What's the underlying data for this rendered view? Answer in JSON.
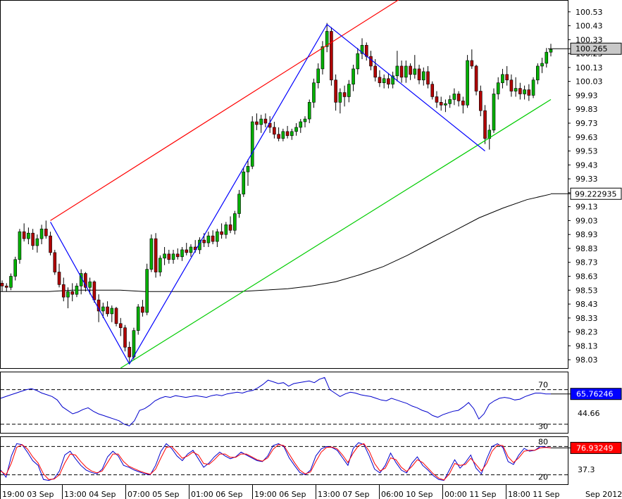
{
  "chart_data": [
    {
      "type": "candlestick",
      "panel": "price",
      "symbol_title": "",
      "ylim": [
        97.97,
        100.61
      ],
      "y_ticks": [
        "100.53",
        "100.43",
        "100.33",
        "100.23",
        "100.13",
        "100.03",
        "99.93",
        "99.83",
        "99.73",
        "99.63",
        "99.53",
        "99.43",
        "99.33",
        "99.23",
        "99.13",
        "99.03",
        "98.93",
        "98.83",
        "98.73",
        "98.63",
        "98.53",
        "98.43",
        "98.33",
        "98.23",
        "98.13",
        "98.03"
      ],
      "last_price_label": "100.265",
      "last_price": 100.265,
      "moving_average_label": "99.222935",
      "moving_average_last": 99.222935,
      "ohlc": [
        [
          98.58,
          98.6,
          98.52,
          98.56
        ],
        [
          98.56,
          98.58,
          98.52,
          98.55
        ],
        [
          98.55,
          98.65,
          98.53,
          98.63
        ],
        [
          98.63,
          98.77,
          98.6,
          98.75
        ],
        [
          98.75,
          98.97,
          98.72,
          98.95
        ],
        [
          98.95,
          99.01,
          98.88,
          98.9
        ],
        [
          98.9,
          98.98,
          98.86,
          98.94
        ],
        [
          98.94,
          98.97,
          98.82,
          98.85
        ],
        [
          98.85,
          98.93,
          98.8,
          98.9
        ],
        [
          98.9,
          99.0,
          98.86,
          98.97
        ],
        [
          98.97,
          99.03,
          98.9,
          98.92
        ],
        [
          98.92,
          98.95,
          98.78,
          98.8
        ],
        [
          98.8,
          98.82,
          98.64,
          98.66
        ],
        [
          98.66,
          98.72,
          98.55,
          98.57
        ],
        [
          98.57,
          98.62,
          98.45,
          98.48
        ],
        [
          98.48,
          98.55,
          98.4,
          98.52
        ],
        [
          98.52,
          98.58,
          98.45,
          98.5
        ],
        [
          98.5,
          98.58,
          98.48,
          98.56
        ],
        [
          98.56,
          98.68,
          98.5,
          98.65
        ],
        [
          98.65,
          98.66,
          98.52,
          98.55
        ],
        [
          98.55,
          98.62,
          98.5,
          98.59
        ],
        [
          98.59,
          98.6,
          98.44,
          98.46
        ],
        [
          98.46,
          98.5,
          98.3,
          98.38
        ],
        [
          98.38,
          98.44,
          98.33,
          98.41
        ],
        [
          98.41,
          98.45,
          98.34,
          98.36
        ],
        [
          98.36,
          98.42,
          98.3,
          98.4
        ],
        [
          98.4,
          98.41,
          98.27,
          98.29
        ],
        [
          98.29,
          98.33,
          98.2,
          98.26
        ],
        [
          98.26,
          98.28,
          98.09,
          98.12
        ],
        [
          98.12,
          98.16,
          98.0,
          98.05
        ],
        [
          98.05,
          98.26,
          98.03,
          98.24
        ],
        [
          98.24,
          98.43,
          98.21,
          98.41
        ],
        [
          98.41,
          98.46,
          98.34,
          98.37
        ],
        [
          98.37,
          98.72,
          98.35,
          98.68
        ],
        [
          98.68,
          98.93,
          98.66,
          98.9
        ],
        [
          98.9,
          98.94,
          98.62,
          98.66
        ],
        [
          98.66,
          98.78,
          98.63,
          98.76
        ],
        [
          98.76,
          98.84,
          98.71,
          98.79
        ],
        [
          98.79,
          98.82,
          98.72,
          98.75
        ],
        [
          98.75,
          98.82,
          98.72,
          98.79
        ],
        [
          98.79,
          98.83,
          98.75,
          98.77
        ],
        [
          98.77,
          98.84,
          98.74,
          98.82
        ],
        [
          98.82,
          98.87,
          98.78,
          98.8
        ],
        [
          98.8,
          98.86,
          98.77,
          98.84
        ],
        [
          98.84,
          98.89,
          98.8,
          98.82
        ],
        [
          98.82,
          98.91,
          98.79,
          98.89
        ],
        [
          98.89,
          98.94,
          98.84,
          98.87
        ],
        [
          98.87,
          98.95,
          98.84,
          98.92
        ],
        [
          98.92,
          98.96,
          98.86,
          98.88
        ],
        [
          98.88,
          98.97,
          98.84,
          98.95
        ],
        [
          98.95,
          99.01,
          98.9,
          98.93
        ],
        [
          98.93,
          99.02,
          98.9,
          99.0
        ],
        [
          99.0,
          99.06,
          98.94,
          98.96
        ],
        [
          98.96,
          99.1,
          98.93,
          99.08
        ],
        [
          99.08,
          99.25,
          99.05,
          99.22
        ],
        [
          99.22,
          99.41,
          99.2,
          99.38
        ],
        [
          99.38,
          99.47,
          99.28,
          99.42
        ],
        [
          99.42,
          99.78,
          99.4,
          99.74
        ],
        [
          99.74,
          99.8,
          99.68,
          99.72
        ],
        [
          99.72,
          99.79,
          99.66,
          99.76
        ],
        [
          99.76,
          99.8,
          99.7,
          99.73
        ],
        [
          99.73,
          99.78,
          99.66,
          99.7
        ],
        [
          99.7,
          99.74,
          99.62,
          99.65
        ],
        [
          99.65,
          99.7,
          99.6,
          99.62
        ],
        [
          99.62,
          99.69,
          99.6,
          99.67
        ],
        [
          99.67,
          99.71,
          99.62,
          99.64
        ],
        [
          99.64,
          99.69,
          99.61,
          99.67
        ],
        [
          99.67,
          99.73,
          99.64,
          99.7
        ],
        [
          99.7,
          99.76,
          99.66,
          99.74
        ],
        [
          99.74,
          99.78,
          99.7,
          99.76
        ],
        [
          99.76,
          99.9,
          99.73,
          99.88
        ],
        [
          99.88,
          100.05,
          99.84,
          100.02
        ],
        [
          100.02,
          100.16,
          99.98,
          100.12
        ],
        [
          100.12,
          100.32,
          100.08,
          100.28
        ],
        [
          100.28,
          100.45,
          100.24,
          100.39
        ],
        [
          100.39,
          100.42,
          100.0,
          100.04
        ],
        [
          100.04,
          100.08,
          99.82,
          99.88
        ],
        [
          99.88,
          99.98,
          99.8,
          99.95
        ],
        [
          99.95,
          100.0,
          99.85,
          99.92
        ],
        [
          99.92,
          100.04,
          99.88,
          100.01
        ],
        [
          100.01,
          100.15,
          99.96,
          100.12
        ],
        [
          100.12,
          100.27,
          100.08,
          100.23
        ],
        [
          100.23,
          100.34,
          100.19,
          100.29
        ],
        [
          100.29,
          100.31,
          100.18,
          100.21
        ],
        [
          100.21,
          100.25,
          100.11,
          100.14
        ],
        [
          100.14,
          100.19,
          100.03,
          100.06
        ],
        [
          100.06,
          100.11,
          99.99,
          100.02
        ],
        [
          100.02,
          100.08,
          99.98,
          100.05
        ],
        [
          100.05,
          100.09,
          99.98,
          100.01
        ],
        [
          100.01,
          100.1,
          99.98,
          100.07
        ],
        [
          100.07,
          100.25,
          100.03,
          100.14
        ],
        [
          100.14,
          100.18,
          100.02,
          100.06
        ],
        [
          100.06,
          100.18,
          100.02,
          100.14
        ],
        [
          100.14,
          100.16,
          100.04,
          100.08
        ],
        [
          100.08,
          100.22,
          100.05,
          100.12
        ],
        [
          100.12,
          100.15,
          100.01,
          100.04
        ],
        [
          100.04,
          100.13,
          100.0,
          100.1
        ],
        [
          100.1,
          100.14,
          99.98,
          100.01
        ],
        [
          100.01,
          100.03,
          99.9,
          99.92
        ],
        [
          99.92,
          99.96,
          99.84,
          99.88
        ],
        [
          99.88,
          99.92,
          99.82,
          99.86
        ],
        [
          99.86,
          99.9,
          99.81,
          99.87
        ],
        [
          99.87,
          99.93,
          99.84,
          99.9
        ],
        [
          99.9,
          99.98,
          99.86,
          99.94
        ],
        [
          99.94,
          99.96,
          99.85,
          99.89
        ],
        [
          99.89,
          99.92,
          99.8,
          99.86
        ],
        [
          99.86,
          100.22,
          99.84,
          100.18
        ],
        [
          100.18,
          100.26,
          100.12,
          100.14
        ],
        [
          100.14,
          100.15,
          99.93,
          99.96
        ],
        [
          99.96,
          100.0,
          99.78,
          99.82
        ],
        [
          99.82,
          99.86,
          99.58,
          99.62
        ],
        [
          99.62,
          99.72,
          99.54,
          99.68
        ],
        [
          99.68,
          99.98,
          99.66,
          99.94
        ],
        [
          99.94,
          100.06,
          99.9,
          100.02
        ],
        [
          100.02,
          100.12,
          99.98,
          100.08
        ],
        [
          100.08,
          100.14,
          100.0,
          100.04
        ],
        [
          100.04,
          100.08,
          99.92,
          99.96
        ],
        [
          99.96,
          100.06,
          99.92,
          99.98
        ],
        [
          99.98,
          100.02,
          99.9,
          99.94
        ],
        [
          99.94,
          100.0,
          99.9,
          99.97
        ],
        [
          99.97,
          100.01,
          99.89,
          99.93
        ],
        [
          99.93,
          100.06,
          99.91,
          100.04
        ],
        [
          100.04,
          100.16,
          100.01,
          100.14
        ],
        [
          100.14,
          100.2,
          100.09,
          100.16
        ],
        [
          100.16,
          100.27,
          100.13,
          100.24
        ],
        [
          100.24,
          100.3,
          100.21,
          100.26
        ]
      ],
      "moving_average": [
        98.52,
        98.52,
        98.52,
        98.53,
        98.53,
        98.53,
        98.52,
        98.52,
        98.52,
        98.52,
        98.52,
        98.53,
        98.54,
        98.56,
        98.59,
        98.64,
        98.7,
        98.78,
        98.87,
        98.96,
        99.05,
        99.12,
        99.18,
        99.22
      ],
      "channel_lines": [
        {
          "color": "#ff0000",
          "from": [
            11,
            99.03
          ],
          "to": [
            91,
            100.63
          ]
        },
        {
          "color": "#00cc00",
          "from": [
            27,
            97.97
          ],
          "to": [
            125,
            99.9
          ]
        }
      ],
      "zigzag": [
        [
          11,
          99.02
        ],
        [
          29,
          98.0
        ],
        [
          74,
          100.44
        ],
        [
          110,
          99.53
        ]
      ]
    },
    {
      "type": "line",
      "panel": "rsi",
      "ylim": [
        20,
        90
      ],
      "levels": [
        70,
        30
      ],
      "level_labels": [
        "70",
        "30"
      ],
      "mid_label": "44.66",
      "value_label": "65.76246",
      "series": [
        {
          "color": "#0000cc",
          "values": [
            60,
            62,
            64,
            66,
            68,
            70,
            71,
            69,
            66,
            64,
            62,
            58,
            50,
            46,
            42,
            44,
            47,
            49,
            45,
            42,
            40,
            38,
            36,
            34,
            30,
            28,
            34,
            46,
            48,
            52,
            57,
            60,
            62,
            61,
            63,
            62,
            61,
            62,
            63,
            62,
            61,
            63,
            64,
            63,
            65,
            66,
            67,
            66,
            68,
            69,
            72,
            76,
            81,
            79,
            77,
            78,
            74,
            77,
            78,
            79,
            80,
            78,
            82,
            84,
            70,
            66,
            62,
            65,
            67,
            66,
            64,
            63,
            62,
            60,
            58,
            57,
            60,
            58,
            56,
            54,
            51,
            49,
            46,
            44,
            40,
            38,
            41,
            43,
            45,
            46,
            50,
            55,
            48,
            36,
            42,
            53,
            57,
            60,
            61,
            60,
            58,
            59,
            62,
            64,
            66,
            66,
            65,
            65
          ]
        }
      ]
    },
    {
      "type": "line",
      "panel": "stochastic",
      "ylim": [
        0,
        100
      ],
      "levels": [
        80,
        20
      ],
      "level_labels": [
        "80",
        "20"
      ],
      "mid_label": "37.3",
      "value_label": "76.93249",
      "x_tick_labels": [
        "19:00 03 Sep",
        "13:00 04 Sep",
        "07:00 05 Sep",
        "01:00 06 Sep",
        "19:00 06 Sep",
        "13:00 07 Sep",
        "06:00 10 Sep",
        "00:00 11 Sep",
        "18:00 11 Sep",
        "Sep 2012"
      ],
      "series": [
        {
          "color": "#0000cc",
          "values": [
            30,
            15,
            60,
            86,
            84,
            68,
            50,
            40,
            10,
            8,
            12,
            28,
            62,
            70,
            54,
            40,
            30,
            25,
            22,
            32,
            58,
            70,
            60,
            40,
            36,
            30,
            26,
            22,
            20,
            40,
            70,
            86,
            76,
            60,
            50,
            64,
            72,
            54,
            36,
            45,
            58,
            68,
            60,
            54,
            58,
            68,
            62,
            56,
            50,
            48,
            60,
            82,
            86,
            80,
            56,
            40,
            25,
            20,
            30,
            60,
            75,
            80,
            78,
            72,
            56,
            40,
            76,
            88,
            84,
            60,
            32,
            24,
            40,
            66,
            46,
            30,
            24,
            45,
            58,
            40,
            30,
            18,
            10,
            8,
            30,
            52,
            34,
            46,
            62,
            34,
            22,
            54,
            80,
            86,
            78,
            48,
            42,
            62,
            76,
            70,
            72,
            80,
            79,
            77
          ]
        },
        {
          "color": "#ff0000",
          "values": [
            28,
            20,
            45,
            78,
            84,
            75,
            58,
            45,
            22,
            10,
            11,
            20,
            45,
            64,
            62,
            48,
            36,
            28,
            24,
            28,
            46,
            64,
            64,
            48,
            38,
            33,
            28,
            24,
            21,
            32,
            56,
            78,
            80,
            68,
            55,
            60,
            68,
            62,
            44,
            42,
            52,
            64,
            64,
            57,
            57,
            64,
            64,
            58,
            52,
            49,
            56,
            74,
            84,
            82,
            64,
            46,
            30,
            22,
            26,
            48,
            68,
            78,
            79,
            75,
            62,
            46,
            66,
            82,
            86,
            70,
            44,
            28,
            34,
            56,
            52,
            36,
            27,
            38,
            52,
            46,
            34,
            22,
            13,
            9,
            22,
            44,
            40,
            42,
            55,
            42,
            28,
            44,
            70,
            83,
            82,
            58,
            46,
            56,
            70,
            72,
            72,
            77,
            78,
            77
          ]
        }
      ]
    }
  ]
}
